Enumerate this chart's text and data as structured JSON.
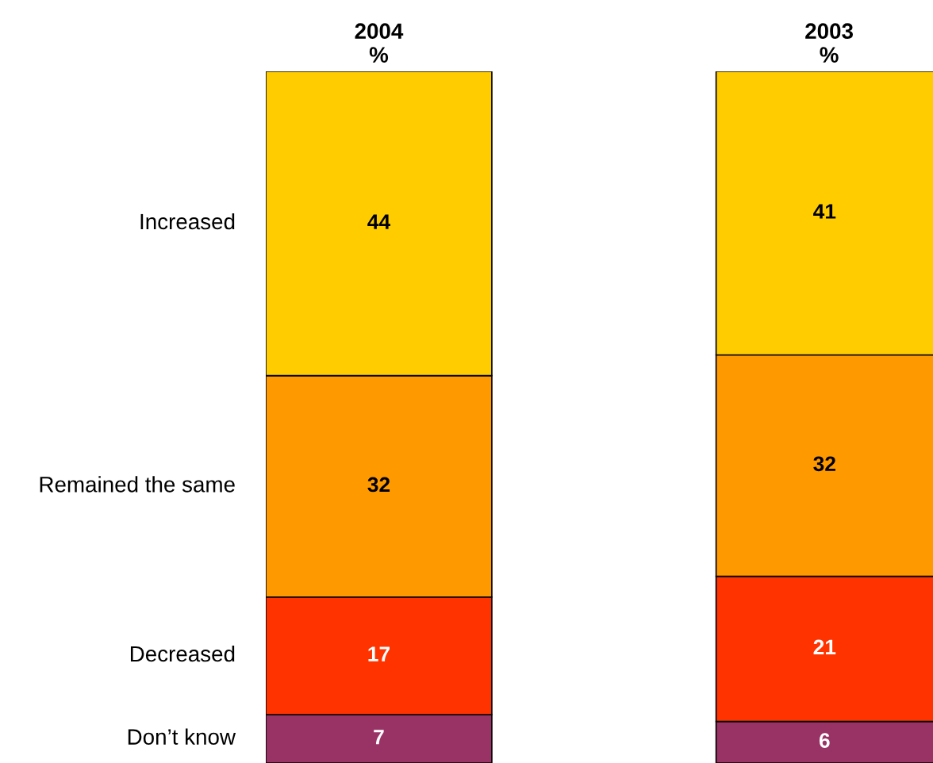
{
  "chart_data": {
    "type": "bar",
    "stacked": true,
    "categories": [
      "2004\n%",
      "2003\n%"
    ],
    "series": [
      {
        "name": "Don’t know",
        "color": "#993366",
        "values": [
          7,
          6
        ]
      },
      {
        "name": "Decreased",
        "color": "#ff3300",
        "values": [
          17,
          21
        ]
      },
      {
        "name": "Remained the same",
        "color": "#ff9900",
        "values": [
          32,
          32
        ]
      },
      {
        "name": "Increased",
        "color": "#ffcc00",
        "values": [
          44,
          41
        ]
      }
    ],
    "data_labels": true,
    "legend": false,
    "grid": false
  }
}
